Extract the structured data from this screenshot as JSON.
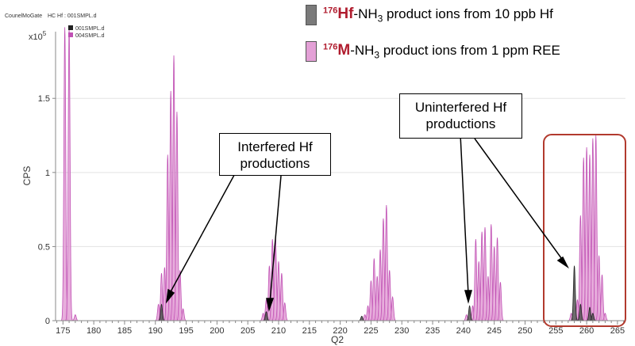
{
  "header": {
    "file_title": "HC Hf : 001SMPL.d",
    "overlap_text": "CounelMoGate",
    "y_multiplier_base": "x10",
    "y_multiplier_exp": "5"
  },
  "mini_legend": [
    {
      "name": "001SMPL.d",
      "color": "#222222"
    },
    {
      "name": "004SMPL.d",
      "color": "#c050b4"
    }
  ],
  "legend": [
    {
      "isotope": "176",
      "element": "Hf",
      "rest": "-NH",
      "sub": "3",
      "tail": " product ions from 10 ppb Hf",
      "color": "#7a7a7a"
    },
    {
      "isotope": "176",
      "element": "M",
      "rest": "-NH",
      "sub": "3",
      "tail": " product ions from 1 ppm REE",
      "color": "#e3a0d6"
    }
  ],
  "annotations": {
    "interfered": {
      "line1": "Interfered Hf",
      "line2": "productions"
    },
    "uninterfered": {
      "line1": "Uninterfered Hf",
      "line2": "productions"
    }
  },
  "chart_data": {
    "type": "line",
    "xlabel": "Q2",
    "ylabel": "CPS",
    "xlim": [
      173.8,
      266.3
    ],
    "ylim": [
      0,
      1.95
    ],
    "x_ticks": [
      175,
      180,
      185,
      190,
      195,
      200,
      205,
      210,
      215,
      220,
      225,
      230,
      235,
      240,
      245,
      250,
      255,
      260,
      265
    ],
    "y_ticks": [
      0,
      0.5,
      1,
      1.5
    ],
    "y_tick_labels": [
      "0",
      "0.5",
      "1",
      "1.5"
    ],
    "peak_width": 0.3,
    "series": [
      {
        "name": "004SMPL.d",
        "color": "#c050b4",
        "fill": "#e3a0d6",
        "peaks": [
          [
            175.3,
            1.98
          ],
          [
            176.0,
            1.98
          ],
          [
            177.0,
            0.04
          ],
          [
            190.5,
            0.11
          ],
          [
            191.0,
            0.32
          ],
          [
            191.5,
            0.36
          ],
          [
            192.0,
            1.12
          ],
          [
            192.5,
            1.55
          ],
          [
            193.0,
            1.79
          ],
          [
            193.5,
            1.41
          ],
          [
            194.0,
            0.34
          ],
          [
            194.5,
            0.08
          ],
          [
            207.5,
            0.05
          ],
          [
            208.0,
            0.14
          ],
          [
            208.5,
            0.37
          ],
          [
            209.0,
            0.55
          ],
          [
            209.5,
            0.56
          ],
          [
            210.0,
            0.4
          ],
          [
            210.5,
            0.32
          ],
          [
            211.0,
            0.12
          ],
          [
            224.0,
            0.04
          ],
          [
            224.5,
            0.1
          ],
          [
            225.0,
            0.27
          ],
          [
            225.5,
            0.42
          ],
          [
            226.0,
            0.3
          ],
          [
            226.5,
            0.48
          ],
          [
            227.0,
            0.69
          ],
          [
            227.5,
            0.78
          ],
          [
            228.0,
            0.34
          ],
          [
            228.5,
            0.16
          ],
          [
            240.5,
            0.04
          ],
          [
            241.5,
            0.1
          ],
          [
            242.0,
            0.55
          ],
          [
            242.5,
            0.4
          ],
          [
            243.0,
            0.6
          ],
          [
            243.5,
            0.63
          ],
          [
            244.0,
            0.3
          ],
          [
            244.5,
            0.65
          ],
          [
            245.0,
            0.5
          ],
          [
            245.5,
            0.56
          ],
          [
            246.0,
            0.26
          ],
          [
            257.5,
            0.05
          ],
          [
            258.5,
            0.14
          ],
          [
            259.0,
            0.71
          ],
          [
            259.5,
            1.1
          ],
          [
            260.0,
            1.17
          ],
          [
            260.5,
            1.12
          ],
          [
            261.0,
            1.23
          ],
          [
            261.5,
            1.25
          ],
          [
            262.0,
            0.44
          ],
          [
            262.5,
            0.31
          ],
          [
            263.0,
            0.05
          ]
        ]
      },
      {
        "name": "001SMPL.d",
        "color": "#222222",
        "fill": "#555555",
        "peaks": [
          [
            191.0,
            0.11
          ],
          [
            208.0,
            0.06
          ],
          [
            223.5,
            0.03
          ],
          [
            241.0,
            0.1
          ],
          [
            258.0,
            0.37
          ],
          [
            259.0,
            0.11
          ],
          [
            260.5,
            0.09
          ],
          [
            261.0,
            0.05
          ]
        ]
      }
    ]
  }
}
